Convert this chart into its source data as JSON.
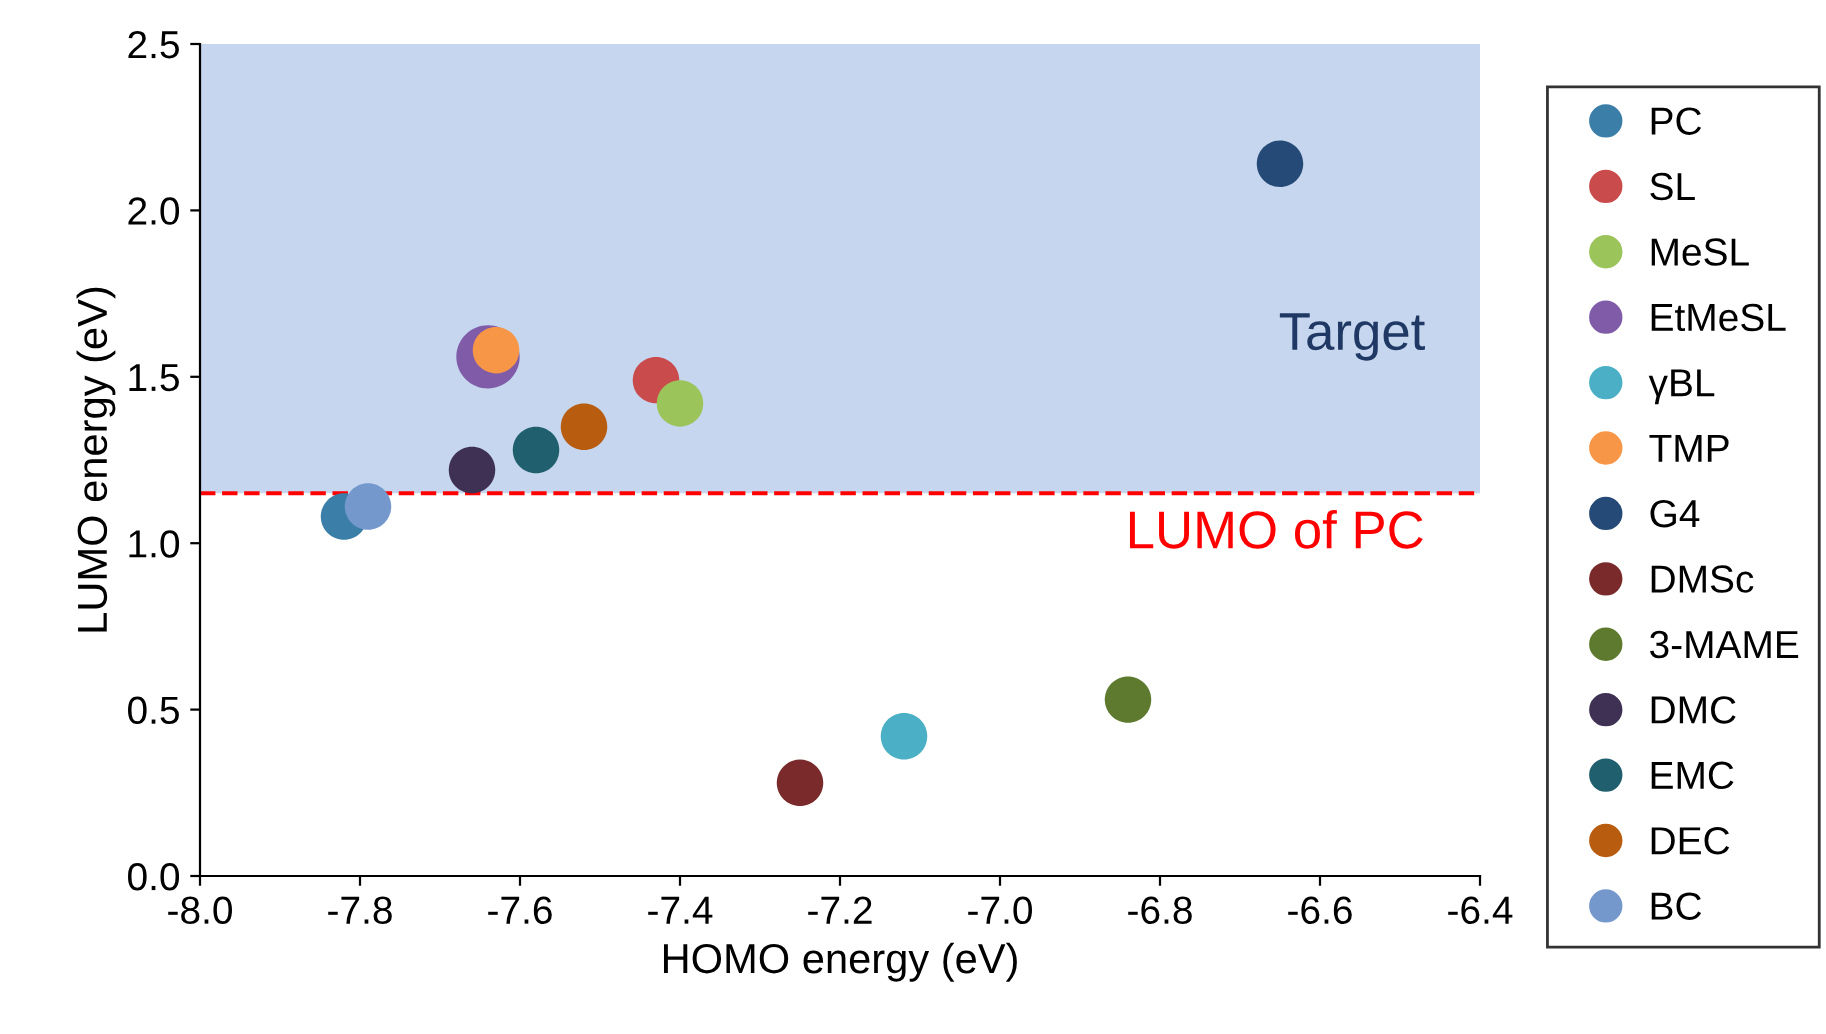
{
  "chart_data": {
    "type": "scatter",
    "xlabel": "HOMO energy (eV)",
    "ylabel": "LUMO energy (eV)",
    "xlim": [
      -8.0,
      -6.4
    ],
    "xticks": [
      {
        "value": -8.0,
        "label": "-8.0"
      },
      {
        "value": -7.8,
        "label": "-7.8"
      },
      {
        "value": -7.6,
        "label": "-7.6"
      },
      {
        "value": -7.4,
        "label": "-7.4"
      },
      {
        "value": -7.2,
        "label": "-7.2"
      },
      {
        "value": -7.0,
        "label": "-7.0"
      },
      {
        "value": -6.8,
        "label": "-6.8"
      },
      {
        "value": -6.6,
        "label": "-6.6"
      },
      {
        "value": -6.4,
        "label": "-6.4"
      }
    ],
    "ylim": [
      0.0,
      2.5
    ],
    "yticks": [
      {
        "value": 0.0,
        "label": "0.0"
      },
      {
        "value": 0.5,
        "label": "0.5"
      },
      {
        "value": 1.0,
        "label": "1.0"
      },
      {
        "value": 1.5,
        "label": "1.5"
      },
      {
        "value": 2.0,
        "label": "2.0"
      },
      {
        "value": 2.5,
        "label": "2.5"
      }
    ],
    "marker": "circle",
    "grid": false,
    "legend": "right",
    "bands": [
      {
        "axis": "y",
        "from": 1.15,
        "to": 2.5,
        "label": "Target",
        "color": "#c5d6ee"
      }
    ],
    "ref_lines": [
      {
        "axis": "y",
        "value": 1.15,
        "label": "LUMO of PC",
        "color": "#ff0000",
        "line_style": "dashed"
      }
    ],
    "series": [
      {
        "name": "PC",
        "color": "#3b7ea8",
        "x": [
          -7.82
        ],
        "values": [
          1.08
        ]
      },
      {
        "name": "SL",
        "color": "#c94b4b",
        "x": [
          -7.43
        ],
        "values": [
          1.49
        ]
      },
      {
        "name": "MeSL",
        "color": "#9bc45a",
        "x": [
          -7.4
        ],
        "values": [
          1.42
        ]
      },
      {
        "name": "EtMeSL",
        "color": "#7f5ba8",
        "x": [
          -7.64
        ],
        "values": [
          1.56
        ]
      },
      {
        "name": "γBL",
        "color": "#4bafc6",
        "x": [
          -7.12
        ],
        "values": [
          0.42
        ]
      },
      {
        "name": "TMP",
        "color": "#f79646",
        "x": [
          -7.63
        ],
        "values": [
          1.58
        ]
      },
      {
        "name": "G4",
        "color": "#254a77",
        "x": [
          -6.65
        ],
        "values": [
          2.14
        ]
      },
      {
        "name": "DMSc",
        "color": "#7a2a2a",
        "x": [
          -7.25
        ],
        "values": [
          0.28
        ]
      },
      {
        "name": "3-MAME",
        "color": "#5e7a2e",
        "x": [
          -6.84
        ],
        "values": [
          0.53
        ]
      },
      {
        "name": "DMC",
        "color": "#3f3153",
        "x": [
          -7.66
        ],
        "values": [
          1.22
        ]
      },
      {
        "name": "EMC",
        "color": "#20606e",
        "x": [
          -7.58
        ],
        "values": [
          1.28
        ]
      },
      {
        "name": "DEC",
        "color": "#b85c10",
        "x": [
          -7.52
        ],
        "values": [
          1.35
        ]
      },
      {
        "name": "BC",
        "color": "#7598cc",
        "x": [
          -7.79
        ],
        "values": [
          1.11
        ]
      }
    ]
  }
}
